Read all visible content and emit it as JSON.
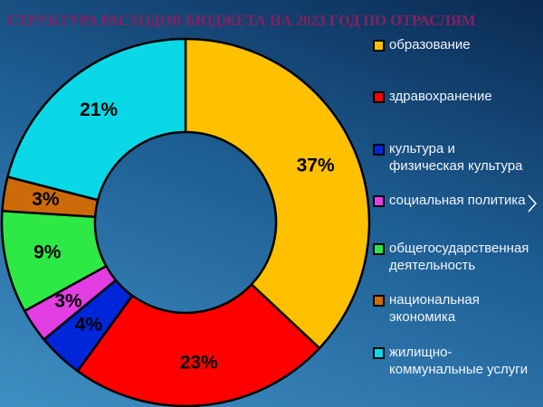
{
  "chart_data": {
    "type": "donut",
    "title": "СТРУКТУРА РАСХОДОВ БЮДЖЕТА НА 2023 ГОД ПО ОТРАСЛЯМ",
    "categories": [
      "образование",
      "здравохранение",
      "культура и физическая культура",
      "социальная политика",
      "общегосударственная деятельность",
      "национальная экономика",
      "жилищно-коммунальные услуги"
    ],
    "values": [
      37,
      23,
      4,
      3,
      9,
      3,
      21
    ],
    "value_labels": [
      "37%",
      "23%",
      "4%",
      "3%",
      "9%",
      "3%",
      "21%"
    ],
    "colors": [
      "#ffc000",
      "#ff0000",
      "#0026d9",
      "#e23ee2",
      "#2ee846",
      "#cc6a0a",
      "#0ad8e6"
    ],
    "legend": "right"
  }
}
